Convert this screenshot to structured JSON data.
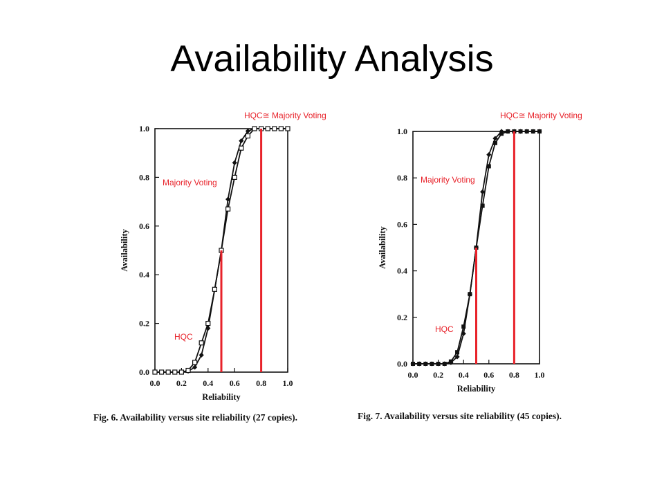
{
  "slide": {
    "title": "Availability Analysis"
  },
  "chart_data": [
    {
      "type": "line",
      "caption": "Fig. 6.   Availability versus site reliability (27 copies).",
      "xlabel": "Reliability",
      "ylabel": "Availability",
      "xlim": [
        0,
        1
      ],
      "ylim": [
        0,
        1
      ],
      "xticks": [
        "0.0",
        "0.2",
        "0.4",
        "0.6",
        "0.8",
        "1.0"
      ],
      "yticks": [
        "0.0",
        "0.2",
        "0.4",
        "0.6",
        "0.8",
        "1.0"
      ],
      "series": [
        {
          "marker": "filled-diamond",
          "x": [
            0.0,
            0.05,
            0.1,
            0.15,
            0.2,
            0.25,
            0.3,
            0.35,
            0.4,
            0.45,
            0.5,
            0.55,
            0.6,
            0.65,
            0.7,
            0.75,
            0.8,
            0.85,
            0.9,
            0.95,
            1.0
          ],
          "y": [
            0.0,
            0.0,
            0.0,
            0.0,
            0.0,
            0.004,
            0.02,
            0.07,
            0.18,
            0.34,
            0.5,
            0.71,
            0.86,
            0.95,
            0.99,
            1.0,
            1.0,
            1.0,
            1.0,
            1.0,
            1.0
          ]
        },
        {
          "marker": "open-square",
          "x": [
            0.0,
            0.05,
            0.1,
            0.15,
            0.2,
            0.25,
            0.3,
            0.35,
            0.4,
            0.45,
            0.5,
            0.55,
            0.6,
            0.65,
            0.7,
            0.75,
            0.8,
            0.85,
            0.9,
            0.95,
            1.0
          ],
          "y": [
            0.0,
            0.0,
            0.0,
            0.0,
            0.0,
            0.007,
            0.04,
            0.12,
            0.2,
            0.34,
            0.5,
            0.67,
            0.8,
            0.92,
            0.97,
            1.0,
            1.0,
            1.0,
            1.0,
            1.0,
            1.0
          ]
        }
      ],
      "annotations": [
        {
          "text": "HQC≅ Majority Voting",
          "line_x": 0.8,
          "line_y_top": 1.0,
          "color": "#e8222a"
        },
        {
          "text": "Majority Voting"
        },
        {
          "text": "HQC",
          "line_x": 0.5,
          "line_y_top": 0.5,
          "color": "#e8222a"
        }
      ]
    },
    {
      "type": "line",
      "caption": "Fig. 7.   Availability versus site reliability (45 copies).",
      "xlabel": "Reliability",
      "ylabel": "Availability",
      "xlim": [
        0,
        1
      ],
      "ylim": [
        0,
        1
      ],
      "xticks": [
        "0.0",
        "0.2",
        "0.4",
        "0.6",
        "0.8",
        "1.0"
      ],
      "yticks": [
        "0.0",
        "0.2",
        "0.4",
        "0.6",
        "0.8",
        "1.0"
      ],
      "series": [
        {
          "marker": "filled-diamond",
          "x": [
            0.0,
            0.05,
            0.1,
            0.15,
            0.2,
            0.25,
            0.3,
            0.35,
            0.4,
            0.45,
            0.5,
            0.55,
            0.6,
            0.65,
            0.7,
            0.75,
            0.8,
            0.85,
            0.9,
            0.95,
            1.0
          ],
          "y": [
            0.0,
            0.0,
            0.0,
            0.0,
            0.0,
            0.0,
            0.005,
            0.03,
            0.13,
            0.3,
            0.5,
            0.74,
            0.9,
            0.97,
            1.0,
            1.0,
            1.0,
            1.0,
            1.0,
            1.0,
            1.0
          ]
        },
        {
          "marker": "filled-square",
          "x": [
            0.0,
            0.05,
            0.1,
            0.15,
            0.2,
            0.25,
            0.3,
            0.35,
            0.4,
            0.45,
            0.5,
            0.55,
            0.6,
            0.65,
            0.7,
            0.75,
            0.8,
            0.85,
            0.9,
            0.95,
            1.0
          ],
          "y": [
            0.0,
            0.0,
            0.0,
            0.0,
            0.0,
            0.0,
            0.01,
            0.05,
            0.16,
            0.3,
            0.5,
            0.68,
            0.85,
            0.95,
            0.99,
            1.0,
            1.0,
            1.0,
            1.0,
            1.0,
            1.0
          ]
        }
      ],
      "annotations": [
        {
          "text": "HQC≅ Majority Voting",
          "line_x": 0.8,
          "line_y_top": 1.0,
          "color": "#e8222a"
        },
        {
          "text": "Majority Voting"
        },
        {
          "text": "HQC",
          "line_x": 0.5,
          "line_y_top": 0.5,
          "color": "#e8222a"
        }
      ]
    }
  ]
}
